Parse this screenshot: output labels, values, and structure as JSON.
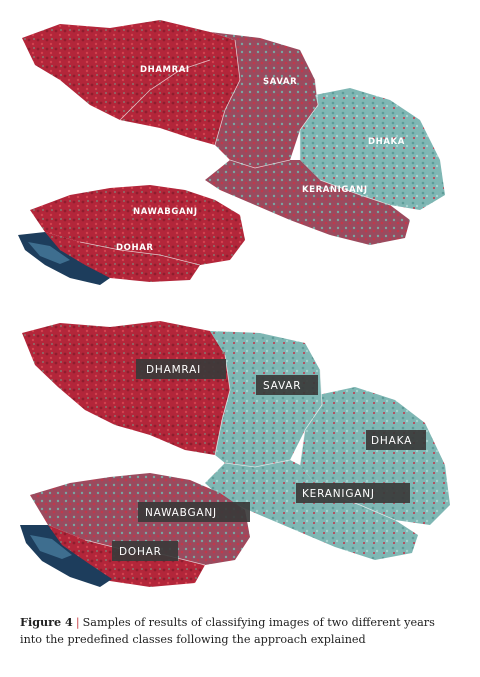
{
  "map_top": {
    "labels": {
      "dhamrai": "DHAMRAI",
      "savar": "SAVAR",
      "dhaka": "DHAKA",
      "keraniganj": "KERANIGANJ",
      "nawabganj": "NAWABGANJ",
      "dohar": "DOHAR"
    }
  },
  "map_bottom": {
    "labels": {
      "dhamrai": "DHAMRAI",
      "savar": "SAVAR",
      "dhaka": "DHAKA",
      "keraniganj": "KERANIGANJ",
      "nawabganj": "NAWABGANJ",
      "dohar": "DOHAR"
    }
  },
  "caption": {
    "figure_label": "Figure 4",
    "separator": "|",
    "text": "Samples of results of classifying images of two different years into the predefined classes following the approach explained"
  },
  "colors": {
    "red_vegetation": "#b8283c",
    "cyan_urban": "#7fbfbf",
    "water": "#1d3d5c",
    "label_bg": "#3a3a3a"
  }
}
